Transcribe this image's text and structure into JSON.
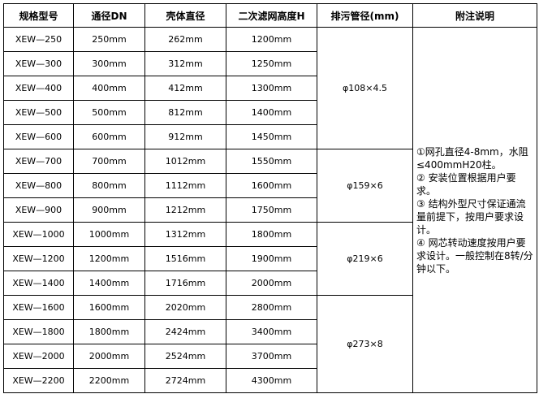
{
  "headers": [
    "规格型号",
    "通径DN",
    "壳体直径",
    "二次滤网高度H",
    "排污管径(mm)",
    "附注说明"
  ],
  "rows": [
    [
      "XEW—250",
      "250mm",
      "262mm",
      "1200mm"
    ],
    [
      "XEW—300",
      "300mm",
      "312mm",
      "1250mm"
    ],
    [
      "XEW—400",
      "400mm",
      "412mm",
      "1300mm"
    ],
    [
      "XEW—500",
      "500mm",
      "812mm",
      "1400mm"
    ],
    [
      "XEW—600",
      "600mm",
      "912mm",
      "1450mm"
    ],
    [
      "XEW—700",
      "700mm",
      "1012mm",
      "1550mm"
    ],
    [
      "XEW—800",
      "800mm",
      "1112mm",
      "1600mm"
    ],
    [
      "XEW—900",
      "900mm",
      "1212mm",
      "1750mm"
    ],
    [
      "XEW—1000",
      "1000mm",
      "1312mm",
      "1800mm"
    ],
    [
      "XEW—1200",
      "1200mm",
      "1516mm",
      "1900mm"
    ],
    [
      "XEW—1400",
      "1400mm",
      "1716mm",
      "2000mm"
    ],
    [
      "XEW—1600",
      "1600mm",
      "2020mm",
      "2800mm"
    ],
    [
      "XEW—1800",
      "1800mm",
      "2424mm",
      "3400mm"
    ],
    [
      "XEW—2000",
      "2000mm",
      "2524mm",
      "3700mm"
    ],
    [
      "XEW—2200",
      "2200mm",
      "2724mm",
      "4300mm"
    ]
  ],
  "drain": [
    "φ108×4.5",
    "φ159×6",
    "φ219×6",
    "φ273×8"
  ],
  "notes": [
    "①网孔直径4-8mm，水阻≤400mmH20柱。",
    "② 安装位置根据用户要求。",
    "③ 结构外型尺寸保证通流量前提下，按用户要求设计。",
    "④ 网芯转动速度按用户要求设计。一般控制在8转/分钟以下。"
  ]
}
